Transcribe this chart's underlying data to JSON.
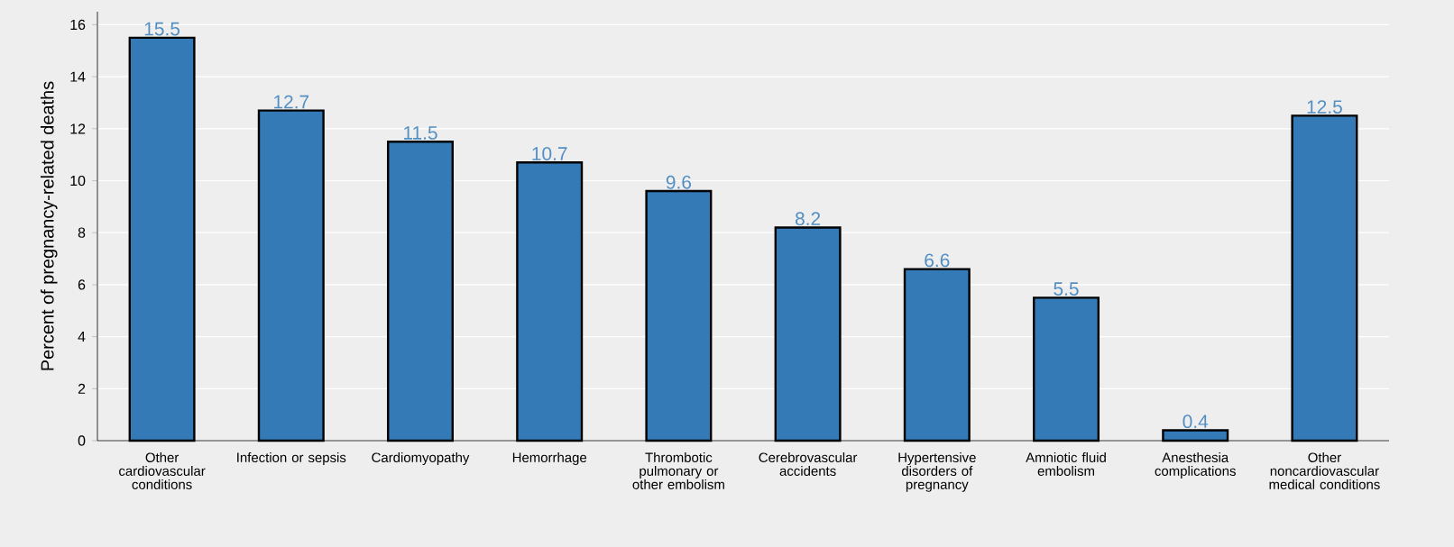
{
  "chart_data": {
    "type": "bar",
    "ylabel": "Percent of pregnancy-related deaths",
    "categories": [
      "Other cardiovascular conditions",
      "Infection or sepsis",
      "Cardiomyopathy",
      "Hemorrhage",
      "Thrombotic pulmonary or other embolism",
      "Cerebrovascular accidents",
      "Hypertensive disorders of pregnancy",
      "Amniotic fluid embolism",
      "Anesthesia complications",
      "Other noncardiovascular medical conditions"
    ],
    "values": [
      15.5,
      12.7,
      11.5,
      10.7,
      9.6,
      8.2,
      6.6,
      5.5,
      0.4,
      12.5
    ],
    "color": "#337ab7",
    "data_labels": true,
    "ylim": [
      0,
      16.5
    ],
    "yticks": [
      0,
      2,
      4,
      6,
      8,
      10,
      12,
      14,
      16
    ],
    "grid": "y"
  }
}
